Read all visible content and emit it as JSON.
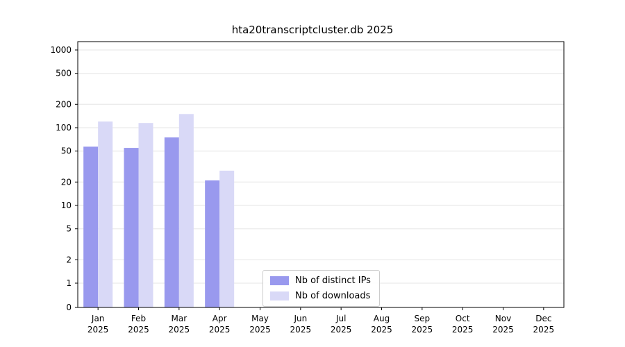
{
  "chart_data": {
    "type": "bar",
    "title": "hta20transcriptcluster.db 2025",
    "categories": [
      "Jan",
      "Feb",
      "Mar",
      "Apr",
      "May",
      "Jun",
      "Jul",
      "Aug",
      "Sep",
      "Oct",
      "Nov",
      "Dec"
    ],
    "year_label": "2025",
    "series": [
      {
        "name": "Nb of distinct IPs",
        "color": "#9999ee",
        "values": [
          57,
          55,
          75,
          21,
          0,
          0,
          0,
          0,
          0,
          0,
          0,
          0
        ]
      },
      {
        "name": "Nb of downloads",
        "color": "#d9d9f7",
        "values": [
          120,
          115,
          150,
          28,
          0,
          0,
          0,
          0,
          0,
          0,
          0,
          0
        ]
      }
    ],
    "y_ticks": [
      0,
      1,
      2,
      5,
      10,
      20,
      50,
      100,
      200,
      500,
      1000
    ],
    "y_scale": "symlog",
    "xlabel": "",
    "ylabel": "",
    "grid": true,
    "legend_position": "bottom-center-inside",
    "axis_color": "#000000",
    "grid_color": "#e6e6e6"
  }
}
